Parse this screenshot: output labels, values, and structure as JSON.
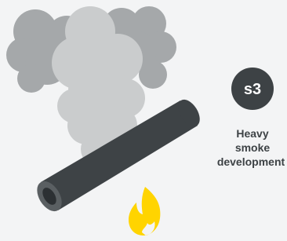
{
  "badge": "s3",
  "caption": [
    "Heavy",
    "smoke",
    "development"
  ]
}
